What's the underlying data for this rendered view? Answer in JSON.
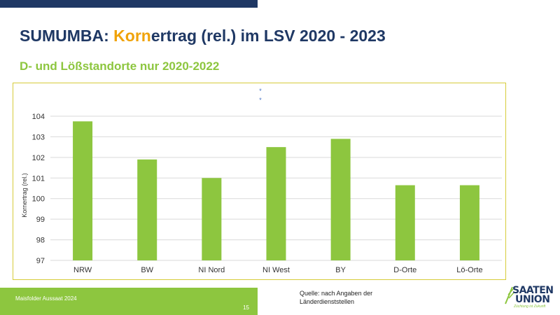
{
  "title": {
    "prefix": "SUMUMBA: ",
    "highlight": "Korn",
    "rest": "ertrag (rel.) im LSV 2020 - 2023"
  },
  "subtitle": "D- und Lößstandorte nur 2020-2022",
  "footer": {
    "label": "Maisfolder Aussaat 2024",
    "page": "15"
  },
  "source": "Quelle:  nach Angaben der Länderdienststellen",
  "logo": {
    "line1": "SAATEN",
    "line2": "UNION",
    "tagline": "Züchtung ist Zukunft"
  },
  "colors": {
    "navy": "#1f3864",
    "green": "#8dc63f",
    "orange": "#f0a30a",
    "bar": "#8dc63f"
  },
  "chart_data": {
    "type": "bar",
    "categories": [
      "NRW",
      "BW",
      "NI Nord",
      "NI West",
      "BY",
      "D-Orte",
      "Lö-Orte"
    ],
    "values": [
      103.75,
      101.9,
      101.0,
      102.5,
      102.9,
      100.65,
      100.65
    ],
    "ylabel": "Kornertrag (rel.)",
    "xlabel": "",
    "ylim": [
      97,
      104
    ],
    "yticks": [
      97,
      98,
      99,
      100,
      101,
      102,
      103,
      104
    ],
    "grid": true,
    "legend_markers": [
      "*",
      "*"
    ]
  }
}
